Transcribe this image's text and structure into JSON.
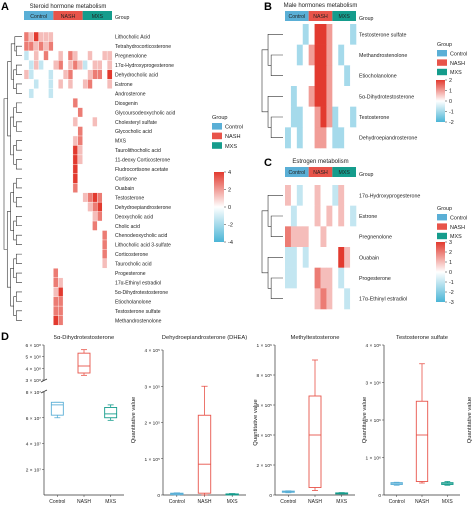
{
  "panel_labels": [
    "A",
    "B",
    "C",
    "D"
  ],
  "groups": {
    "title": "Group",
    "names": [
      "Control",
      "NASH",
      "MXS"
    ],
    "colors": {
      "Control": "#5aafd6",
      "NASH": "#e8544a",
      "MXS": "#159c8c"
    }
  },
  "colorscale": {
    "low": "#4bb5d6",
    "mid": "#ffffff",
    "high": "#e23a2f"
  },
  "chart_data": [
    {
      "type": "heatmap",
      "panel": "A",
      "title": "Steroid hormone metabolism",
      "columns": [
        "Control",
        "NASH",
        "MXS"
      ],
      "n_per_group": 6,
      "legend_ticks": [
        4,
        2,
        0,
        -2,
        -4
      ],
      "rows": [
        "Lithocholic Acid",
        "Tetrahydrocorticosterone",
        "Pregnenolone",
        "17α-Hydroxyprogesterone",
        "Dehydrocholic acid",
        "Estrone",
        "Androsterone",
        "Diosgenin",
        "Glycoursodeoxycholic acid",
        "Cholesteryl sulfate",
        "Glycocholic acid",
        "MXS",
        "Taurolithocholic acid",
        "11-deoxy Corticosterone",
        "Fludrocortisone acetate",
        "Cortisone",
        "Ouabain",
        "Testosterone",
        "Dehydroepiandrosterone",
        "Deoxycholic acid",
        "Cholic acid",
        "Chenodeoxycholic acid",
        "Lithocholic acid 3-sulfate",
        "Corticosterone",
        "Taurocholic acid",
        "Progesterone",
        "17α-Ethinyl estradiol",
        "5α-Dihydrotestosterone",
        "Etiocholanolone",
        "Testosterone sulfate",
        "Methandrostenolone"
      ],
      "values": [
        [
          2,
          1,
          3,
          1,
          1,
          1,
          0,
          0,
          0,
          0,
          0,
          0,
          0,
          0,
          0,
          0,
          0,
          0
        ],
        [
          2,
          2,
          1,
          2,
          1,
          2,
          0,
          0,
          0,
          0,
          0,
          0,
          0,
          0,
          0,
          0,
          0,
          0
        ],
        [
          -1,
          0,
          1,
          0,
          2,
          0,
          0,
          1,
          0,
          2,
          1,
          0,
          0,
          1,
          0,
          0,
          1,
          1
        ],
        [
          0,
          -1,
          1,
          -1,
          0,
          0,
          1,
          2,
          0,
          1,
          2,
          1,
          -1,
          0,
          1,
          1,
          0,
          1
        ],
        [
          1,
          -1,
          0,
          0,
          0,
          -1,
          0,
          0,
          1,
          2,
          0,
          0,
          0,
          1,
          2,
          2,
          0,
          3
        ],
        [
          0,
          0,
          -1,
          0,
          0,
          -1,
          0,
          1,
          0,
          1,
          0,
          0,
          1,
          2,
          0,
          0,
          0,
          1
        ],
        [
          0,
          -1,
          0,
          0,
          0,
          -1,
          0,
          0,
          0,
          0,
          0,
          0,
          0,
          0,
          0,
          0,
          0,
          0
        ],
        [
          0,
          0,
          0,
          0,
          0,
          0,
          0,
          0,
          0,
          0,
          2,
          0,
          0,
          0,
          0,
          0,
          0,
          0
        ],
        [
          0,
          0,
          0,
          0,
          0,
          0,
          0,
          0,
          0,
          0,
          0,
          2,
          0,
          0,
          0,
          0,
          0,
          0
        ],
        [
          0,
          0,
          0,
          0,
          0,
          0,
          0,
          0,
          0,
          0,
          1,
          0,
          0,
          0,
          1,
          0,
          0,
          0
        ],
        [
          0,
          0,
          0,
          0,
          0,
          0,
          0,
          0,
          0,
          0,
          0,
          2,
          0,
          0,
          0,
          0,
          0,
          0
        ],
        [
          0,
          0,
          0,
          0,
          0,
          0,
          0,
          0,
          0,
          0,
          1,
          2,
          0,
          0,
          0,
          0,
          0,
          0
        ],
        [
          0,
          0,
          0,
          0,
          0,
          0,
          0,
          0,
          0,
          0,
          3,
          1,
          0,
          0,
          0,
          0,
          0,
          0
        ],
        [
          0,
          0,
          0,
          0,
          0,
          0,
          0,
          0,
          0,
          0,
          3,
          1,
          0,
          0,
          0,
          0,
          0,
          0
        ],
        [
          0,
          0,
          0,
          0,
          0,
          0,
          0,
          0,
          0,
          0,
          3,
          0,
          0,
          0,
          0,
          0,
          0,
          0
        ],
        [
          0,
          0,
          0,
          0,
          0,
          0,
          0,
          0,
          0,
          0,
          3,
          0,
          0,
          0,
          0,
          0,
          0,
          0
        ],
        [
          0,
          0,
          0,
          0,
          0,
          0,
          0,
          0,
          0,
          0,
          2,
          0,
          0,
          0,
          0,
          0,
          0,
          0
        ],
        [
          0,
          0,
          0,
          0,
          0,
          0,
          0,
          0,
          0,
          0,
          0,
          0,
          1,
          2,
          3,
          2,
          0,
          0
        ],
        [
          0,
          0,
          0,
          0,
          0,
          0,
          0,
          0,
          0,
          0,
          0,
          0,
          0,
          1,
          2,
          3,
          0,
          0
        ],
        [
          0,
          0,
          0,
          0,
          0,
          0,
          0,
          0,
          0,
          0,
          0,
          0,
          0,
          0,
          1,
          2,
          0,
          0
        ],
        [
          0,
          0,
          0,
          0,
          0,
          0,
          0,
          0,
          0,
          0,
          0,
          0,
          0,
          0,
          2,
          0,
          0,
          0
        ],
        [
          0,
          0,
          0,
          0,
          0,
          0,
          0,
          0,
          0,
          0,
          0,
          0,
          0,
          0,
          0,
          0,
          2,
          0
        ],
        [
          0,
          0,
          0,
          0,
          0,
          0,
          0,
          0,
          0,
          0,
          0,
          0,
          0,
          0,
          0,
          0,
          2,
          0
        ],
        [
          0,
          0,
          0,
          0,
          0,
          0,
          0,
          0,
          0,
          0,
          0,
          0,
          0,
          0,
          0,
          0,
          2,
          0
        ],
        [
          0,
          0,
          0,
          0,
          0,
          0,
          0,
          0,
          0,
          0,
          0,
          0,
          0,
          0,
          0,
          0,
          1,
          0
        ],
        [
          0,
          0,
          0,
          0,
          0,
          0,
          2,
          0,
          0,
          0,
          0,
          0,
          0,
          0,
          0,
          0,
          0,
          0
        ],
        [
          0,
          0,
          0,
          0,
          0,
          0,
          2,
          1,
          0,
          0,
          0,
          0,
          0,
          0,
          0,
          0,
          0,
          0
        ],
        [
          0,
          0,
          0,
          0,
          0,
          0,
          1,
          3,
          0,
          0,
          0,
          0,
          0,
          0,
          0,
          0,
          0,
          0
        ],
        [
          0,
          0,
          0,
          0,
          0,
          0,
          2,
          2,
          0,
          0,
          0,
          0,
          0,
          0,
          0,
          0,
          0,
          0
        ],
        [
          0,
          0,
          0,
          0,
          0,
          0,
          2,
          2,
          0,
          0,
          0,
          0,
          0,
          0,
          0,
          0,
          0,
          0
        ],
        [
          0,
          0,
          0,
          0,
          0,
          0,
          3,
          2,
          0,
          0,
          0,
          0,
          0,
          0,
          0,
          0,
          0,
          0
        ]
      ]
    },
    {
      "type": "heatmap",
      "panel": "B",
      "title": "Male hormones metabolism",
      "columns": [
        "Control",
        "NASH",
        "MXS"
      ],
      "n_per_group": 4,
      "legend_ticks": [
        2,
        1,
        0,
        -1,
        -2
      ],
      "rows": [
        "Testosterone sulfate",
        "Methandrostenolone",
        "Etiocholanolone",
        "5α-Dihydrotestosterone",
        "Testosterone",
        "Dehydroepiandrosterone"
      ],
      "values": [
        [
          0,
          0,
          0,
          -1,
          0,
          2,
          2,
          1,
          0,
          0,
          0,
          -1
        ],
        [
          0,
          0,
          -1,
          0,
          1,
          2,
          2,
          1,
          0,
          -1,
          0,
          0
        ],
        [
          0,
          0,
          0,
          0,
          0,
          2,
          2,
          1,
          0,
          0,
          -1,
          0
        ],
        [
          0,
          -1,
          0,
          0,
          1,
          2,
          2,
          1,
          0,
          0,
          0,
          0
        ],
        [
          0,
          -1,
          -1,
          0,
          0,
          1,
          2,
          1,
          -1,
          0,
          0,
          -1
        ],
        [
          -1,
          0,
          -1,
          0,
          0,
          1,
          1,
          0,
          -1,
          -1,
          0,
          0
        ]
      ]
    },
    {
      "type": "heatmap",
      "panel": "C",
      "title": "Estrogen metabolism",
      "columns": [
        "Control",
        "NASH",
        "MXS"
      ],
      "n_per_group": 4,
      "legend_ticks": [
        3,
        2,
        1,
        0,
        -1,
        -2,
        -3
      ],
      "rows": [
        "17α-Hydroxyprogesterone",
        "Estrone",
        "Pregnenolone",
        "Ouabain",
        "Progesterone",
        "17α-Ethinyl estradiol"
      ],
      "values": [
        [
          1,
          0,
          -1,
          0,
          0,
          1,
          0,
          0,
          -1,
          1,
          0,
          0
        ],
        [
          0,
          -1,
          0,
          0,
          0,
          1,
          0,
          1,
          0,
          1,
          0,
          -1
        ],
        [
          2,
          1,
          1,
          1,
          0,
          0,
          1,
          0,
          0,
          0,
          0,
          0
        ],
        [
          -1,
          -1,
          0,
          -1,
          0,
          0,
          0,
          0,
          0,
          3,
          1,
          0
        ],
        [
          -1,
          -1,
          0,
          0,
          0,
          2,
          1,
          1,
          0,
          -1,
          0,
          0
        ],
        [
          0,
          0,
          0,
          0,
          0,
          1,
          2,
          1,
          0,
          0,
          -1,
          0
        ]
      ]
    },
    {
      "type": "box",
      "panel": "D",
      "title": "5α-Dihydrotestosterone",
      "ylabel": "Quantitative value",
      "broken_axis": true,
      "upper_ticks": [
        "3 × 10⁸",
        "4 × 10⁸",
        "5 × 10⁸",
        "6 × 10⁸"
      ],
      "lower_ticks": [
        "2 × 10⁷",
        "4 × 10⁷",
        "6 × 10⁷",
        "8 × 10⁷"
      ],
      "upper_range": [
        300000000,
        600000000
      ],
      "lower_range": [
        0,
        80000000
      ],
      "categories": [
        "Control",
        "NASH",
        "MXS"
      ],
      "boxes": [
        {
          "group": "Control",
          "min": 60000000,
          "q1": 62000000,
          "median": 70000000,
          "q3": 72000000,
          "max": 72000000
        },
        {
          "group": "NASH",
          "min": 340000000,
          "q1": 360000000,
          "median": 420000000,
          "q3": 530000000,
          "max": 560000000
        },
        {
          "group": "MXS",
          "min": 58000000,
          "q1": 60000000,
          "median": 63000000,
          "q3": 68000000,
          "max": 70000000
        }
      ]
    },
    {
      "type": "box",
      "panel": "D",
      "title": "Dehydroepiandrosterone (DHEA)",
      "ylabel": "Quantitative value",
      "y_ticks": [
        "0",
        "1 × 10⁵",
        "2 × 10⁵",
        "3 × 10⁵",
        "4 × 10⁵"
      ],
      "ylim": [
        0,
        400000
      ],
      "categories": [
        "Control",
        "NASH",
        "MXS"
      ],
      "boxes": [
        {
          "group": "Control",
          "min": 0,
          "q1": 1000,
          "median": 3000,
          "q3": 5000,
          "max": 6000
        },
        {
          "group": "NASH",
          "min": 0,
          "q1": 5000,
          "median": 85000,
          "q3": 220000,
          "max": 300000
        },
        {
          "group": "MXS",
          "min": 0,
          "q1": 1000,
          "median": 2000,
          "q3": 3000,
          "max": 4000
        }
      ]
    },
    {
      "type": "box",
      "panel": "D",
      "title": "Methyltestosterone",
      "ylabel": "Quantitative value",
      "y_ticks": [
        "0",
        "2 × 10⁵",
        "4 × 10⁵",
        "6 × 10⁵",
        "8 × 10⁵",
        "1 × 10⁶"
      ],
      "ylim": [
        0,
        1000000
      ],
      "categories": [
        "Control",
        "NASH",
        "MXS"
      ],
      "boxes": [
        {
          "group": "Control",
          "min": 15000,
          "q1": 18000,
          "median": 22000,
          "q3": 26000,
          "max": 28000
        },
        {
          "group": "NASH",
          "min": 30000,
          "q1": 50000,
          "median": 400000,
          "q3": 660000,
          "max": 900000
        },
        {
          "group": "MXS",
          "min": 8000,
          "q1": 10000,
          "median": 12000,
          "q3": 14000,
          "max": 16000
        }
      ]
    },
    {
      "type": "box",
      "panel": "D",
      "title": "Testosterone sulfate",
      "ylabel": "Quantitative value",
      "y_ticks": [
        "0",
        "1 × 10⁶",
        "2 × 10⁶",
        "3 × 10⁶",
        "4 × 10⁶"
      ],
      "ylim": [
        0,
        4000000
      ],
      "categories": [
        "Control",
        "NASH",
        "MXS"
      ],
      "boxes": [
        {
          "group": "Control",
          "min": 260000,
          "q1": 280000,
          "median": 300000,
          "q3": 330000,
          "max": 340000
        },
        {
          "group": "NASH",
          "min": 320000,
          "q1": 360000,
          "median": 1600000,
          "q3": 2500000,
          "max": 3500000
        },
        {
          "group": "MXS",
          "min": 260000,
          "q1": 280000,
          "median": 300000,
          "q3": 330000,
          "max": 360000
        }
      ]
    }
  ]
}
